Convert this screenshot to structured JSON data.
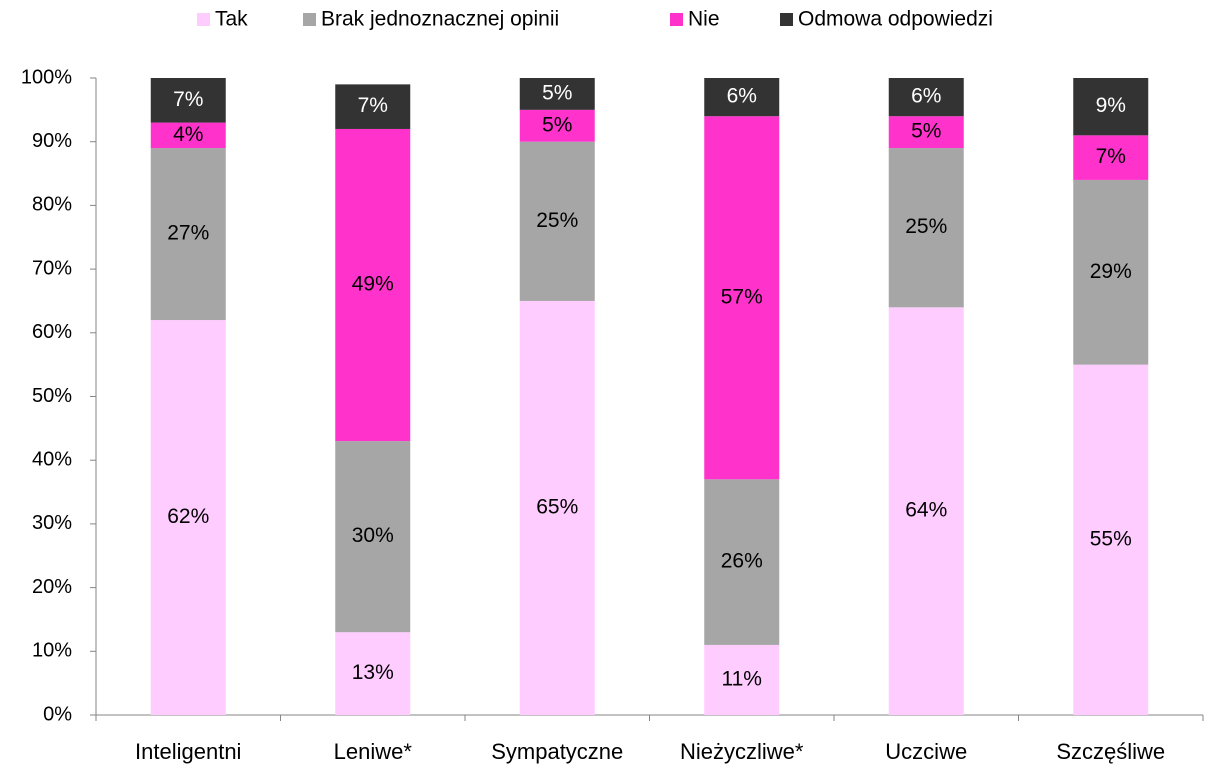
{
  "chart_data": {
    "type": "stacked_bar",
    "categories": [
      "Inteligentni",
      "Leniwe*",
      "Sympatyczne",
      "Nieżyczliwe*",
      "Uczciwe",
      "Szczęśliwe"
    ],
    "series": [
      {
        "name": "Tak",
        "color": "#ffccff",
        "values": [
          62,
          13,
          65,
          11,
          64,
          55
        ],
        "value_labels": [
          "62%",
          "13%",
          "65%",
          "11%",
          "64%",
          "55%"
        ]
      },
      {
        "name": "Brak jednoznacznej opinii",
        "color": "#a6a6a6",
        "values": [
          27,
          30,
          25,
          26,
          25,
          29
        ],
        "value_labels": [
          "27%",
          "30%",
          "25%",
          "26%",
          "25%",
          "29%"
        ]
      },
      {
        "name": "Nie",
        "color": "#ff33cc",
        "values": [
          4,
          49,
          5,
          57,
          5,
          7
        ],
        "value_labels": [
          "4%",
          "49%",
          "5%",
          "57%",
          "5%",
          "7%"
        ]
      },
      {
        "name": "Odmowa odpowiedzi",
        "color": "#333333",
        "values": [
          7,
          7,
          5,
          6,
          6,
          9
        ],
        "value_labels": [
          "7%",
          "7%",
          "5%",
          "6%",
          "6%",
          "9%"
        ]
      }
    ],
    "ylim": [
      0,
      100
    ],
    "yticks": [
      {
        "value": 0,
        "label": "0%"
      },
      {
        "value": 10,
        "label": "10%"
      },
      {
        "value": 20,
        "label": "20%"
      },
      {
        "value": 30,
        "label": "30%"
      },
      {
        "value": 40,
        "label": "40%"
      },
      {
        "value": 50,
        "label": "50%"
      },
      {
        "value": 60,
        "label": "60%"
      },
      {
        "value": 70,
        "label": "70%"
      },
      {
        "value": 80,
        "label": "80%"
      },
      {
        "value": 90,
        "label": "90%"
      },
      {
        "value": 100,
        "label": "100%"
      }
    ],
    "legend": "top"
  }
}
